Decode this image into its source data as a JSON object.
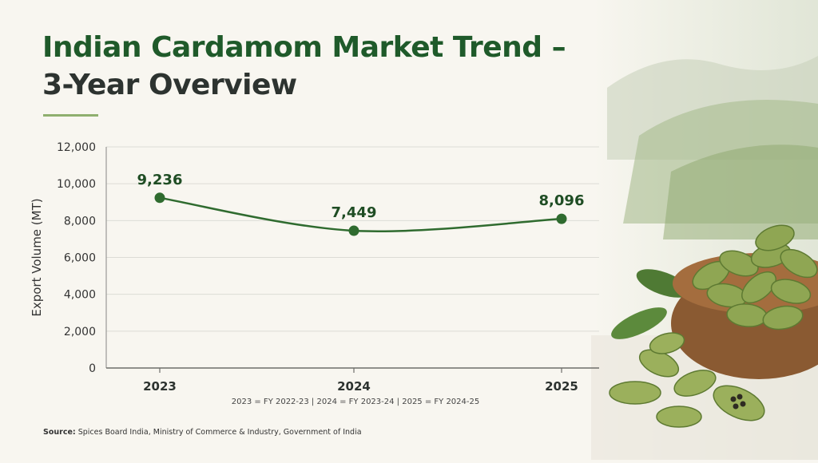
{
  "title": {
    "line1": "Indian Cardamom Market Trend –",
    "line2": "3-Year Overview"
  },
  "chart_data": {
    "type": "line",
    "categories": [
      "2023",
      "2024",
      "2025"
    ],
    "series": [
      {
        "values": [
          9236,
          7449,
          8096
        ]
      }
    ],
    "data_labels": [
      "9,236",
      "7,449",
      "8,096"
    ],
    "ylabel": "Export Volume (MT)",
    "xlabel": "",
    "ylim": [
      0,
      12000
    ],
    "yticks": [
      0,
      2000,
      4000,
      6000,
      8000,
      10000,
      12000
    ],
    "ytick_labels": [
      "0",
      "2,000",
      "4,000",
      "6,000",
      "8,000",
      "10,000",
      "12,000"
    ],
    "grid": true,
    "line_color": "#2f6b2f",
    "marker_color": "#2f6b2f"
  },
  "footnote": "2023 = FY 2022-23   |   2024 = FY 2023-24   |   2025 = FY 2024-25",
  "source": {
    "label": "Source:",
    "text": "Spices Board India, Ministry of Commerce & Industry, Government of India"
  },
  "colors": {
    "title_green": "#1f5a2a",
    "title_dark": "#2d3330",
    "accent_rule": "#8faf6f"
  }
}
